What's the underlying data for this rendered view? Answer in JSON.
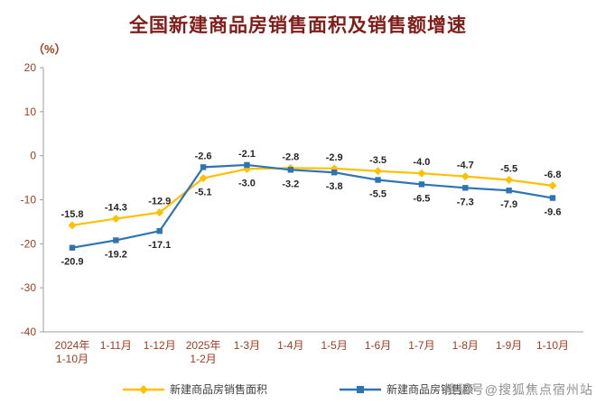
{
  "chart": {
    "title": "全国新建商品房销售面积及销售额增速",
    "y_unit_label": "（%）",
    "watermark": "搜狐号@搜狐焦点宿州站"
  },
  "chart_data": {
    "type": "line",
    "title": "全国新建商品房销售面积及销售额增速",
    "xlabel": "",
    "ylabel": "（%）",
    "ylim": [
      -40,
      20
    ],
    "ytick_step": 10,
    "yticks": [
      20,
      10,
      0,
      -10,
      -20,
      -30,
      -40
    ],
    "grid": false,
    "legend_position": "bottom",
    "categories": [
      "2024年\n1-10月",
      "1-11月",
      "1-12月",
      "2025年\n1-2月",
      "1-3月",
      "1-4月",
      "1-5月",
      "1-6月",
      "1-7月",
      "1-8月",
      "1-9月",
      "1-10月"
    ],
    "series": [
      {
        "name": "新建商品房销售面积",
        "color": "#FFC000",
        "marker": "diamond",
        "values": [
          -15.8,
          -14.3,
          -12.9,
          -5.1,
          -3.0,
          -2.8,
          -2.9,
          -3.5,
          -4.0,
          -4.7,
          -5.5,
          -6.8
        ]
      },
      {
        "name": "新建商品房销售额",
        "color": "#2E74B5",
        "marker": "square",
        "values": [
          -20.9,
          -19.2,
          -17.1,
          -2.6,
          -2.1,
          -3.2,
          -3.8,
          -5.5,
          -6.5,
          -7.3,
          -7.9,
          -9.6
        ]
      }
    ]
  },
  "colors": {
    "title": "#7f1d18",
    "axis_text": "#9c3d20",
    "axis_line": "#9e9e9e",
    "data_label": "#262626",
    "legend_text": "#404040",
    "watermark": "#909090"
  }
}
